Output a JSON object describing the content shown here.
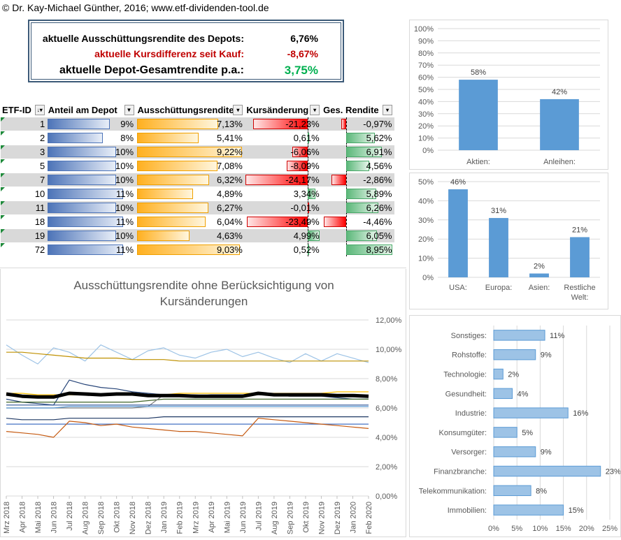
{
  "copyright": "© Dr. Kay-Michael Günther, 2016; www.etf-dividenden-tool.de",
  "summary": {
    "dividend_label": "aktuelle Ausschüttungsrendite des Depots:",
    "dividend_value": "6,76%",
    "price_label": "aktuelle Kursdifferenz seit Kauf:",
    "price_value": "-8,67%",
    "total_label": "aktuelle Depot-Gesamtrendite p.a.:",
    "total_value": "3,75%"
  },
  "table": {
    "headers": [
      "ETF-ID",
      "Anteil am Depot",
      "Ausschüttungsrendite",
      "Kursänderung",
      "Ges. Rendite"
    ],
    "rows": [
      {
        "id": "1",
        "share": "9%",
        "share_pct": 9,
        "div": "7,13%",
        "div_pct": 7.13,
        "chg": "-21,23%",
        "chg_pct": -21.23,
        "tot": "-0,97%",
        "tot_pct": -0.97
      },
      {
        "id": "2",
        "share": "8%",
        "share_pct": 8,
        "div": "5,41%",
        "div_pct": 5.41,
        "chg": "0,61%",
        "chg_pct": 0.61,
        "tot": "5,62%",
        "tot_pct": 5.62
      },
      {
        "id": "3",
        "share": "10%",
        "share_pct": 10,
        "div": "9,22%",
        "div_pct": 9.22,
        "chg": "-6,06%",
        "chg_pct": -6.06,
        "tot": "6,91%",
        "tot_pct": 6.91
      },
      {
        "id": "5",
        "share": "10%",
        "share_pct": 10,
        "div": "7,08%",
        "div_pct": 7.08,
        "chg": "-8,09%",
        "chg_pct": -8.09,
        "tot": "4,56%",
        "tot_pct": 4.56
      },
      {
        "id": "7",
        "share": "10%",
        "share_pct": 10,
        "div": "6,32%",
        "div_pct": 6.32,
        "chg": "-24,17%",
        "chg_pct": -24.17,
        "tot": "-2,86%",
        "tot_pct": -2.86
      },
      {
        "id": "10",
        "share": "11%",
        "share_pct": 11,
        "div": "4,89%",
        "div_pct": 4.89,
        "chg": "3,34%",
        "chg_pct": 3.34,
        "tot": "5,89%",
        "tot_pct": 5.89
      },
      {
        "id": "11",
        "share": "10%",
        "share_pct": 10,
        "div": "6,27%",
        "div_pct": 6.27,
        "chg": "-0,01%",
        "chg_pct": -0.01,
        "tot": "6,26%",
        "tot_pct": 6.26
      },
      {
        "id": "18",
        "share": "11%",
        "share_pct": 11,
        "div": "6,04%",
        "div_pct": 6.04,
        "chg": "-23,49%",
        "chg_pct": -23.49,
        "tot": "-4,46%",
        "tot_pct": -4.46
      },
      {
        "id": "19",
        "share": "10%",
        "share_pct": 10,
        "div": "4,63%",
        "div_pct": 4.63,
        "chg": "4,99%",
        "chg_pct": 4.99,
        "tot": "6,05%",
        "tot_pct": 6.05
      },
      {
        "id": "72",
        "share": "11%",
        "share_pct": 11,
        "div": "9,03%",
        "div_pct": 9.03,
        "chg": "0,52%",
        "chg_pct": 0.52,
        "tot": "8,95%",
        "tot_pct": 8.95
      }
    ]
  },
  "chart_data": [
    {
      "type": "bar",
      "categories": [
        "Aktien:",
        "Anleihen:"
      ],
      "values": [
        58,
        42
      ],
      "data_labels": [
        "58%",
        "42%"
      ],
      "yticks": [
        "0%",
        "10%",
        "20%",
        "30%",
        "40%",
        "50%",
        "60%",
        "70%",
        "80%",
        "90%",
        "100%"
      ],
      "ylim": [
        0,
        100
      ],
      "color": "#5b9bd5"
    },
    {
      "type": "bar",
      "categories": [
        "USA:",
        "Europa:",
        "Asien:",
        "Restliche Welt:"
      ],
      "category_lines": [
        [
          "USA:"
        ],
        [
          "Europa:"
        ],
        [
          "Asien:"
        ],
        [
          "Restliche",
          "Welt:"
        ]
      ],
      "values": [
        46,
        31,
        2,
        21
      ],
      "data_labels": [
        "46%",
        "31%",
        "2%",
        "21%"
      ],
      "yticks": [
        "0%",
        "10%",
        "20%",
        "30%",
        "40%",
        "50%"
      ],
      "ylim": [
        0,
        50
      ],
      "color": "#5b9bd5"
    },
    {
      "type": "bar",
      "orientation": "horizontal",
      "categories": [
        "Sonstiges:",
        "Rohstoffe:",
        "Technologie:",
        "Gesundheit:",
        "Industrie:",
        "Konsumgüter:",
        "Versorger:",
        "Finanzbranche:",
        "Telekommunikation:",
        "Immobilien:"
      ],
      "values": [
        11,
        9,
        2,
        4,
        16,
        5,
        9,
        23,
        8,
        15
      ],
      "data_labels": [
        "11%",
        "9%",
        "2%",
        "4%",
        "16%",
        "5%",
        "9%",
        "23%",
        "8%",
        "15%"
      ],
      "xticks": [
        "0%",
        "5%",
        "10%",
        "15%",
        "20%",
        "25%"
      ],
      "xlim": [
        0,
        25
      ],
      "color": "#9dc3e6"
    },
    {
      "type": "line",
      "title": "Ausschüttungsrendite ohne Berücksichtigung von Kursänderungen",
      "title_lines": [
        "Ausschüttungsrendite ohne Berücksichtigung von",
        "Kursänderungen"
      ],
      "x": [
        "Mrz 2018",
        "Apr 2018",
        "Mai 2018",
        "Jun 2018",
        "Jul 2018",
        "Aug 2018",
        "Sep 2018",
        "Okt 2018",
        "Nov 2018",
        "Dez 2018",
        "Jan 2019",
        "Feb 2019",
        "Mrz 2019",
        "Apr 2019",
        "Mai 2019",
        "Jun 2019",
        "Jul 2019",
        "Aug 2019",
        "Sep 2019",
        "Okt 2019",
        "Nov 2019",
        "Dez 2019",
        "Jan 2020",
        "Feb 2020"
      ],
      "yticks": [
        "0,00%",
        "2,00%",
        "4,00%",
        "6,00%",
        "8,00%",
        "10,00%",
        "12,00%"
      ],
      "ylim": [
        0,
        12
      ],
      "series": [
        {
          "color": "#9dc3e6",
          "width": 1.2,
          "values": [
            10.3,
            9.6,
            9.0,
            10.1,
            9.8,
            9.2,
            10.3,
            9.8,
            9.3,
            9.9,
            10.1,
            9.6,
            9.4,
            9.8,
            10.0,
            9.5,
            9.8,
            9.4,
            9.1,
            9.7,
            9.2,
            9.7,
            9.4,
            9.1
          ]
        },
        {
          "color": "#bf9000",
          "width": 1.2,
          "values": [
            9.8,
            9.8,
            9.7,
            9.6,
            9.5,
            9.4,
            9.4,
            9.4,
            9.3,
            9.3,
            9.3,
            9.2,
            9.2,
            9.2,
            9.2,
            9.2,
            9.2,
            9.2,
            9.2,
            9.2,
            9.2,
            9.2,
            9.2,
            9.2
          ]
        },
        {
          "color": "#ffc000",
          "width": 1.2,
          "values": [
            7.0,
            7.0,
            6.9,
            6.9,
            6.9,
            6.9,
            6.9,
            6.9,
            6.9,
            6.9,
            6.9,
            7.0,
            7.0,
            7.0,
            7.0,
            7.0,
            7.0,
            7.0,
            7.0,
            7.0,
            7.0,
            7.1,
            7.1,
            7.1
          ]
        },
        {
          "color": "#264478",
          "width": 1.2,
          "values": [
            6.6,
            6.4,
            6.3,
            6.2,
            7.9,
            7.6,
            7.4,
            7.3,
            7.1,
            7.0,
            6.9,
            6.8,
            6.8,
            6.9,
            6.9,
            6.9,
            6.9,
            6.9,
            6.8,
            6.8,
            6.8,
            6.7,
            6.6,
            6.6
          ]
        },
        {
          "color": "#43682b",
          "width": 1.2,
          "values": [
            6.4,
            6.4,
            6.4,
            6.4,
            6.4,
            6.4,
            6.4,
            6.4,
            6.4,
            6.5,
            6.6,
            6.6,
            6.6,
            6.6,
            6.6,
            6.6,
            6.6,
            6.6,
            6.6,
            6.6,
            6.6,
            6.6,
            6.6,
            6.6
          ]
        },
        {
          "color": "#7f7f7f",
          "width": 1.2,
          "values": [
            6.0,
            6.0,
            6.0,
            6.0,
            6.0,
            6.0,
            6.0,
            6.0,
            6.0,
            6.1,
            6.9,
            6.9,
            6.9,
            6.8,
            6.8,
            6.8,
            6.9,
            6.9,
            6.8,
            6.8,
            6.8,
            6.8,
            6.8,
            6.8
          ]
        },
        {
          "color": "#2f5597",
          "width": 1.2,
          "values": [
            6.2,
            6.2,
            6.2,
            6.2,
            6.2,
            6.2,
            6.2,
            6.2,
            6.2,
            6.2,
            6.2,
            6.2,
            6.2,
            6.2,
            6.2,
            6.2,
            6.2,
            6.2,
            6.2,
            6.2,
            6.2,
            6.2,
            6.2,
            6.2
          ]
        },
        {
          "color": "#5b9bd5",
          "width": 1.2,
          "values": [
            6.0,
            6.0,
            6.0,
            6.0,
            6.1,
            6.1,
            6.1,
            6.1,
            6.1,
            6.1,
            6.1,
            6.1,
            6.1,
            6.1,
            6.1,
            6.1,
            6.1,
            6.1,
            6.1,
            6.1,
            6.1,
            6.1,
            6.1,
            6.1
          ]
        },
        {
          "color": "#1f3864",
          "width": 1.2,
          "values": [
            5.3,
            5.2,
            5.2,
            5.2,
            5.3,
            5.3,
            5.3,
            5.3,
            5.3,
            5.3,
            5.4,
            5.4,
            5.4,
            5.4,
            5.4,
            5.4,
            5.4,
            5.4,
            5.4,
            5.4,
            5.4,
            5.4,
            5.4,
            5.4
          ]
        },
        {
          "color": "#4472c4",
          "width": 1.2,
          "values": [
            4.9,
            4.9,
            4.9,
            4.9,
            4.9,
            4.9,
            4.9,
            4.9,
            4.9,
            4.9,
            4.9,
            4.9,
            4.9,
            4.9,
            4.9,
            4.9,
            4.9,
            4.9,
            4.9,
            4.9,
            4.9,
            4.9,
            4.9,
            4.9
          ]
        },
        {
          "color": "#c55a11",
          "width": 1.2,
          "values": [
            4.4,
            4.3,
            4.2,
            4.0,
            5.1,
            5.0,
            4.8,
            4.9,
            4.7,
            4.6,
            4.5,
            4.4,
            4.4,
            4.3,
            4.2,
            4.1,
            5.3,
            5.2,
            5.1,
            5.0,
            4.9,
            4.8,
            4.7,
            4.6
          ]
        },
        {
          "color": "#000000",
          "width": 5,
          "values": [
            6.95,
            6.8,
            6.75,
            6.75,
            7.0,
            6.95,
            6.9,
            6.95,
            6.95,
            6.85,
            6.85,
            6.85,
            6.8,
            6.8,
            6.8,
            6.8,
            7.0,
            6.9,
            6.9,
            6.9,
            6.9,
            6.85,
            6.85,
            6.8
          ]
        }
      ]
    }
  ]
}
